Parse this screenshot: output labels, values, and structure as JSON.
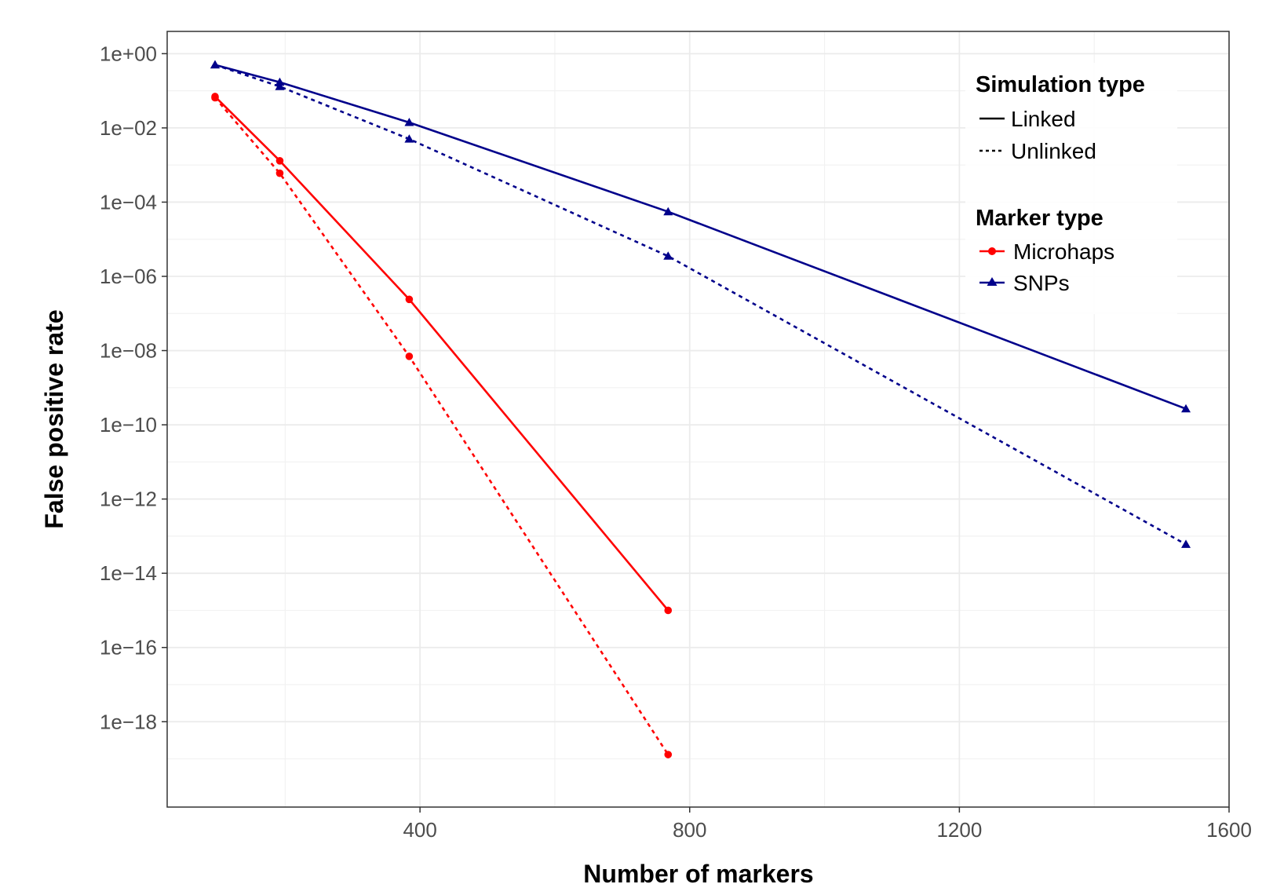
{
  "chart_data": {
    "type": "line",
    "title": "",
    "xlabel": "Number of markers",
    "ylabel": "False positive rate",
    "y_scale": "log10",
    "xlim": [
      25,
      1600
    ],
    "ylim_log10": [
      -20.3,
      0.6
    ],
    "x_ticks": [
      400,
      800,
      1200,
      1600
    ],
    "x_tick_labels": [
      "400",
      "800",
      "1200",
      "1600"
    ],
    "y_ticks_log10": [
      0,
      -2,
      -4,
      -6,
      -8,
      -10,
      -12,
      -14,
      -16,
      -18
    ],
    "y_tick_labels": [
      "1e+00",
      "1e−02",
      "1e−04",
      "1e−06",
      "1e−08",
      "1e−10",
      "1e−12",
      "1e−14",
      "1e−16",
      "1e−18"
    ],
    "grid": true,
    "legend_position": "top-right",
    "legend": {
      "linetype_title": "Simulation type",
      "linetype_entries": [
        {
          "label": "Linked",
          "dash": "solid"
        },
        {
          "label": "Unlinked",
          "dash": "dotted"
        }
      ],
      "marker_title": "Marker type",
      "marker_entries": [
        {
          "label": "Microhaps",
          "color": "#ff0000",
          "shape": "circle"
        },
        {
          "label": "SNPs",
          "color": "#00008b",
          "shape": "triangle"
        }
      ]
    },
    "series": [
      {
        "marker_type": "Microhaps",
        "simulation": "Linked",
        "color": "#ff0000",
        "shape": "circle",
        "dash": "solid",
        "x": [
          96,
          192,
          384,
          768
        ],
        "y": [
          0.07,
          0.0013,
          2.4e-07,
          1e-15
        ]
      },
      {
        "marker_type": "Microhaps",
        "simulation": "Unlinked",
        "color": "#ff0000",
        "shape": "circle",
        "dash": "dotted",
        "x": [
          96,
          192,
          384,
          768
        ],
        "y": [
          0.065,
          0.0006,
          7e-09,
          1.3e-19
        ]
      },
      {
        "marker_type": "SNPs",
        "simulation": "Linked",
        "color": "#00008b",
        "shape": "triangle",
        "dash": "solid",
        "x": [
          96,
          192,
          384,
          768,
          1536
        ],
        "y": [
          0.5,
          0.17,
          0.014,
          5.5e-05,
          2.7e-10
        ]
      },
      {
        "marker_type": "SNPs",
        "simulation": "Unlinked",
        "color": "#00008b",
        "shape": "triangle",
        "dash": "dotted",
        "x": [
          96,
          192,
          384,
          768,
          1536
        ],
        "y": [
          0.5,
          0.13,
          0.005,
          3.5e-06,
          6e-14
        ]
      }
    ]
  }
}
